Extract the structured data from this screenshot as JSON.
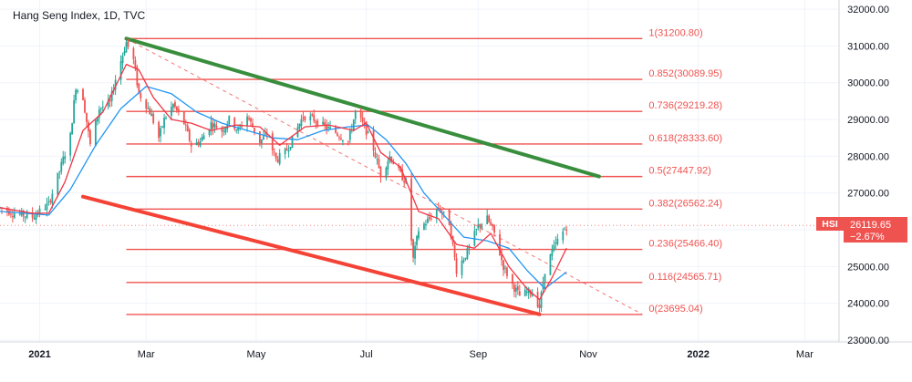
{
  "header": {
    "title": "Hang Seng Index, 1D, TVC"
  },
  "colors": {
    "fib_line": "#ef5350",
    "trend_upper": "#388e3c",
    "trend_lower": "#f44336",
    "ma_fast": "#f23645",
    "ma_slow": "#2196f3",
    "candle_up": "#26a69a",
    "candle_down": "#ef5350",
    "price_tag_bg": "#ef5350"
  },
  "price_tag": {
    "symbol": "HSI",
    "price": "26119.65",
    "change": "−2.67%"
  },
  "chart_data": {
    "type": "candlestick",
    "title": "Hang Seng Index, 1D, TVC",
    "x_axis": {
      "labels": [
        "2021",
        "Mar",
        "May",
        "Jul",
        "Sep",
        "Nov",
        "2022",
        "Mar"
      ],
      "range": [
        "2020-12-10",
        "2022-03-20"
      ]
    },
    "y_axis": {
      "labels": [
        "32000.00",
        "31000.00",
        "30000.00",
        "29000.00",
        "28000.00",
        "27000.00",
        "26000.00",
        "25000.00",
        "24000.00",
        "23000.00"
      ],
      "range": [
        22950,
        32250
      ]
    },
    "fib_levels": [
      {
        "ratio": 1,
        "value": 31200.8,
        "label": "1(31200.80)"
      },
      {
        "ratio": 0.852,
        "value": 30089.95,
        "label": "0.852(30089.95)"
      },
      {
        "ratio": 0.736,
        "value": 29219.28,
        "label": "0.736(29219.28)"
      },
      {
        "ratio": 0.618,
        "value": 28333.6,
        "label": "0.618(28333.60)"
      },
      {
        "ratio": 0.5,
        "value": 27447.92,
        "label": "0.5(27447.92)"
      },
      {
        "ratio": 0.382,
        "value": 26562.24,
        "label": "0.382(26562.24)"
      },
      {
        "ratio": 0.236,
        "value": 25466.4,
        "label": "0.236(25466.40)"
      },
      {
        "ratio": 0.116,
        "value": 24565.71,
        "label": "0.116(24565.71)"
      },
      {
        "ratio": 0,
        "value": 23695.04,
        "label": "0(23695.04)"
      }
    ],
    "fib_range": {
      "start": "2021-02-18",
      "end": "2021-12-01"
    },
    "trendlines": [
      {
        "name": "upper channel",
        "start": [
          "2021-02-18",
          31200
        ],
        "end": [
          "2021-11-07",
          27450
        ]
      },
      {
        "name": "lower channel",
        "start": [
          "2021-01-25",
          26900
        ],
        "end": [
          "2021-10-05",
          23700
        ]
      },
      {
        "name": "dashed projection",
        "start": [
          "2021-02-18",
          31200
        ],
        "end": [
          "2021-12-01",
          23700
        ]
      }
    ],
    "price_path": [
      [
        "2020-12-10",
        26600
      ],
      [
        "2020-12-18",
        26450
      ],
      [
        "2020-12-28",
        26350
      ],
      [
        "2021-01-06",
        26700
      ],
      [
        "2021-01-12",
        27600
      ],
      [
        "2021-01-18",
        28550
      ],
      [
        "2021-01-21",
        29900
      ],
      [
        "2021-01-25",
        29600
      ],
      [
        "2021-01-29",
        28300
      ],
      [
        "2021-02-03",
        29300
      ],
      [
        "2021-02-09",
        29450
      ],
      [
        "2021-02-12",
        30100
      ],
      [
        "2021-02-18",
        31100
      ],
      [
        "2021-02-22",
        30600
      ],
      [
        "2021-02-25",
        29700
      ],
      [
        "2021-03-01",
        29400
      ],
      [
        "2021-03-04",
        29100
      ],
      [
        "2021-03-08",
        28500
      ],
      [
        "2021-03-11",
        29000
      ],
      [
        "2021-03-16",
        29400
      ],
      [
        "2021-03-22",
        28900
      ],
      [
        "2021-03-26",
        28300
      ],
      [
        "2021-03-31",
        28400
      ],
      [
        "2021-04-06",
        28900
      ],
      [
        "2021-04-12",
        28700
      ],
      [
        "2021-04-16",
        29000
      ],
      [
        "2021-04-21",
        28700
      ],
      [
        "2021-04-26",
        29100
      ],
      [
        "2021-05-03",
        28400
      ],
      [
        "2021-05-07",
        28600
      ],
      [
        "2021-05-12",
        27900
      ],
      [
        "2021-05-17",
        28100
      ],
      [
        "2021-05-21",
        28450
      ],
      [
        "2021-05-27",
        29100
      ],
      [
        "2021-06-02",
        29000
      ],
      [
        "2021-06-08",
        28800
      ],
      [
        "2021-06-14",
        28650
      ],
      [
        "2021-06-21",
        28400
      ],
      [
        "2021-06-25",
        29200
      ],
      [
        "2021-06-30",
        28800
      ],
      [
        "2021-07-05",
        28200
      ],
      [
        "2021-07-09",
        27500
      ],
      [
        "2021-07-14",
        28000
      ],
      [
        "2021-07-20",
        27500
      ],
      [
        "2021-07-23",
        27300
      ],
      [
        "2021-07-27",
        25200
      ],
      [
        "2021-07-30",
        26000
      ],
      [
        "2021-08-05",
        26300
      ],
      [
        "2021-08-10",
        26600
      ],
      [
        "2021-08-16",
        26200
      ],
      [
        "2021-08-20",
        24900
      ],
      [
        "2021-08-26",
        25400
      ],
      [
        "2021-09-01",
        26100
      ],
      [
        "2021-09-06",
        26300
      ],
      [
        "2021-09-10",
        25900
      ],
      [
        "2021-09-15",
        25000
      ],
      [
        "2021-09-20",
        24500
      ],
      [
        "2021-09-24",
        24200
      ],
      [
        "2021-09-28",
        24300
      ],
      [
        "2021-10-01",
        24300
      ],
      [
        "2021-10-05",
        23900
      ],
      [
        "2021-10-08",
        24900
      ],
      [
        "2021-10-12",
        25400
      ],
      [
        "2021-10-15",
        25700
      ],
      [
        "2021-10-20",
        26100
      ]
    ],
    "ma_fast_path": [
      [
        "2020-12-10",
        26600
      ],
      [
        "2020-12-28",
        26450
      ],
      [
        "2021-01-06",
        26450
      ],
      [
        "2021-01-15",
        27300
      ],
      [
        "2021-01-25",
        28700
      ],
      [
        "2021-02-05",
        29200
      ],
      [
        "2021-02-18",
        30500
      ],
      [
        "2021-02-25",
        30350
      ],
      [
        "2021-03-05",
        29600
      ],
      [
        "2021-03-15",
        29000
      ],
      [
        "2021-03-26",
        28900
      ],
      [
        "2021-04-06",
        28700
      ],
      [
        "2021-04-20",
        28850
      ],
      [
        "2021-05-03",
        28800
      ],
      [
        "2021-05-14",
        28300
      ],
      [
        "2021-05-28",
        28800
      ],
      [
        "2021-06-10",
        28850
      ],
      [
        "2021-06-24",
        28700
      ],
      [
        "2021-07-01",
        28900
      ],
      [
        "2021-07-09",
        28100
      ],
      [
        "2021-07-20",
        27700
      ],
      [
        "2021-07-30",
        26500
      ],
      [
        "2021-08-10",
        26300
      ],
      [
        "2021-08-20",
        25600
      ],
      [
        "2021-08-30",
        25500
      ],
      [
        "2021-09-08",
        25900
      ],
      [
        "2021-09-18",
        25000
      ],
      [
        "2021-09-28",
        24400
      ],
      [
        "2021-10-05",
        24100
      ],
      [
        "2021-10-12",
        24700
      ],
      [
        "2021-10-20",
        25500
      ]
    ],
    "ma_slow_path": [
      [
        "2020-12-10",
        26500
      ],
      [
        "2021-01-06",
        26400
      ],
      [
        "2021-01-18",
        27100
      ],
      [
        "2021-02-01",
        28300
      ],
      [
        "2021-02-15",
        29300
      ],
      [
        "2021-03-01",
        29900
      ],
      [
        "2021-03-15",
        29700
      ],
      [
        "2021-03-29",
        29200
      ],
      [
        "2021-04-12",
        28900
      ],
      [
        "2021-04-26",
        28700
      ],
      [
        "2021-05-10",
        28500
      ],
      [
        "2021-05-24",
        28450
      ],
      [
        "2021-06-07",
        28700
      ],
      [
        "2021-06-21",
        28800
      ],
      [
        "2021-07-02",
        28850
      ],
      [
        "2021-07-12",
        28450
      ],
      [
        "2021-07-23",
        27800
      ],
      [
        "2021-08-02",
        27000
      ],
      [
        "2021-08-13",
        26400
      ],
      [
        "2021-08-24",
        25800
      ],
      [
        "2021-09-06",
        25700
      ],
      [
        "2021-09-18",
        25500
      ],
      [
        "2021-09-28",
        24900
      ],
      [
        "2021-10-08",
        24400
      ],
      [
        "2021-10-20",
        24850
      ]
    ]
  }
}
